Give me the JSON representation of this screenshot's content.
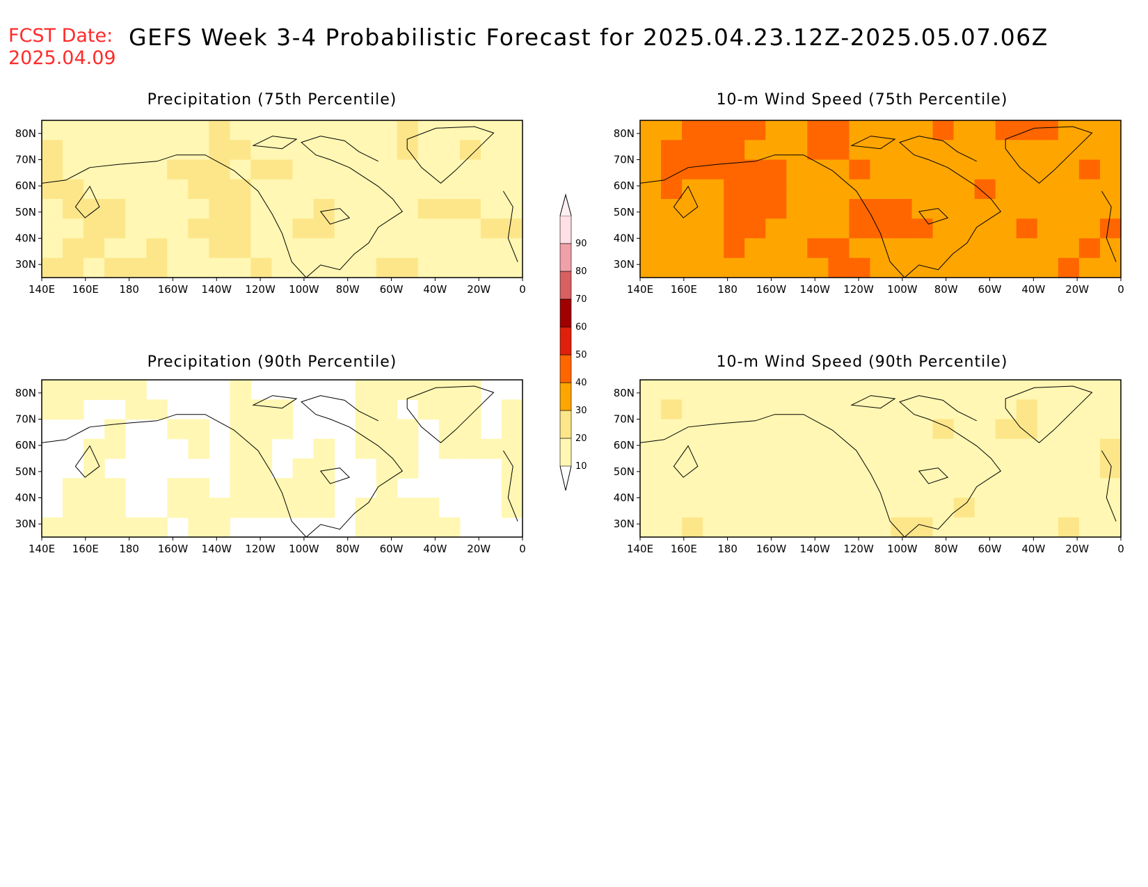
{
  "header": {
    "fcst_label": "FCST Date:",
    "fcst_date": "2025.04.09",
    "title": "GEFS Week 3-4 Probabilistic Forecast for 2025.04.23.12Z-2025.05.07.06Z"
  },
  "axes": {
    "lon_ticks": [
      "140E",
      "160E",
      "180",
      "160W",
      "140W",
      "120W",
      "100W",
      "80W",
      "60W",
      "40W",
      "20W",
      "0"
    ],
    "lat_ticks": [
      "80N",
      "70N",
      "60N",
      "50N",
      "40N",
      "30N"
    ]
  },
  "panels": [
    {
      "title": "Precipitation (75th Percentile)",
      "field": "precip75"
    },
    {
      "title": "10-m Wind Speed (75th Percentile)",
      "field": "wind75"
    },
    {
      "title": "Precipitation (90th Percentile)",
      "field": "precip90"
    },
    {
      "title": "10-m Wind Speed (90th Percentile)",
      "field": "wind90"
    }
  ],
  "colorbar": {
    "levels": [
      "10",
      "20",
      "30",
      "40",
      "50",
      "60",
      "70",
      "80",
      "90"
    ],
    "colors": [
      "#fff7b3",
      "#fde68a",
      "#ffa500",
      "#ff6600",
      "#e0200a",
      "#a00000",
      "#d86060",
      "#f0a0a8",
      "#ffe0e6"
    ]
  }
}
